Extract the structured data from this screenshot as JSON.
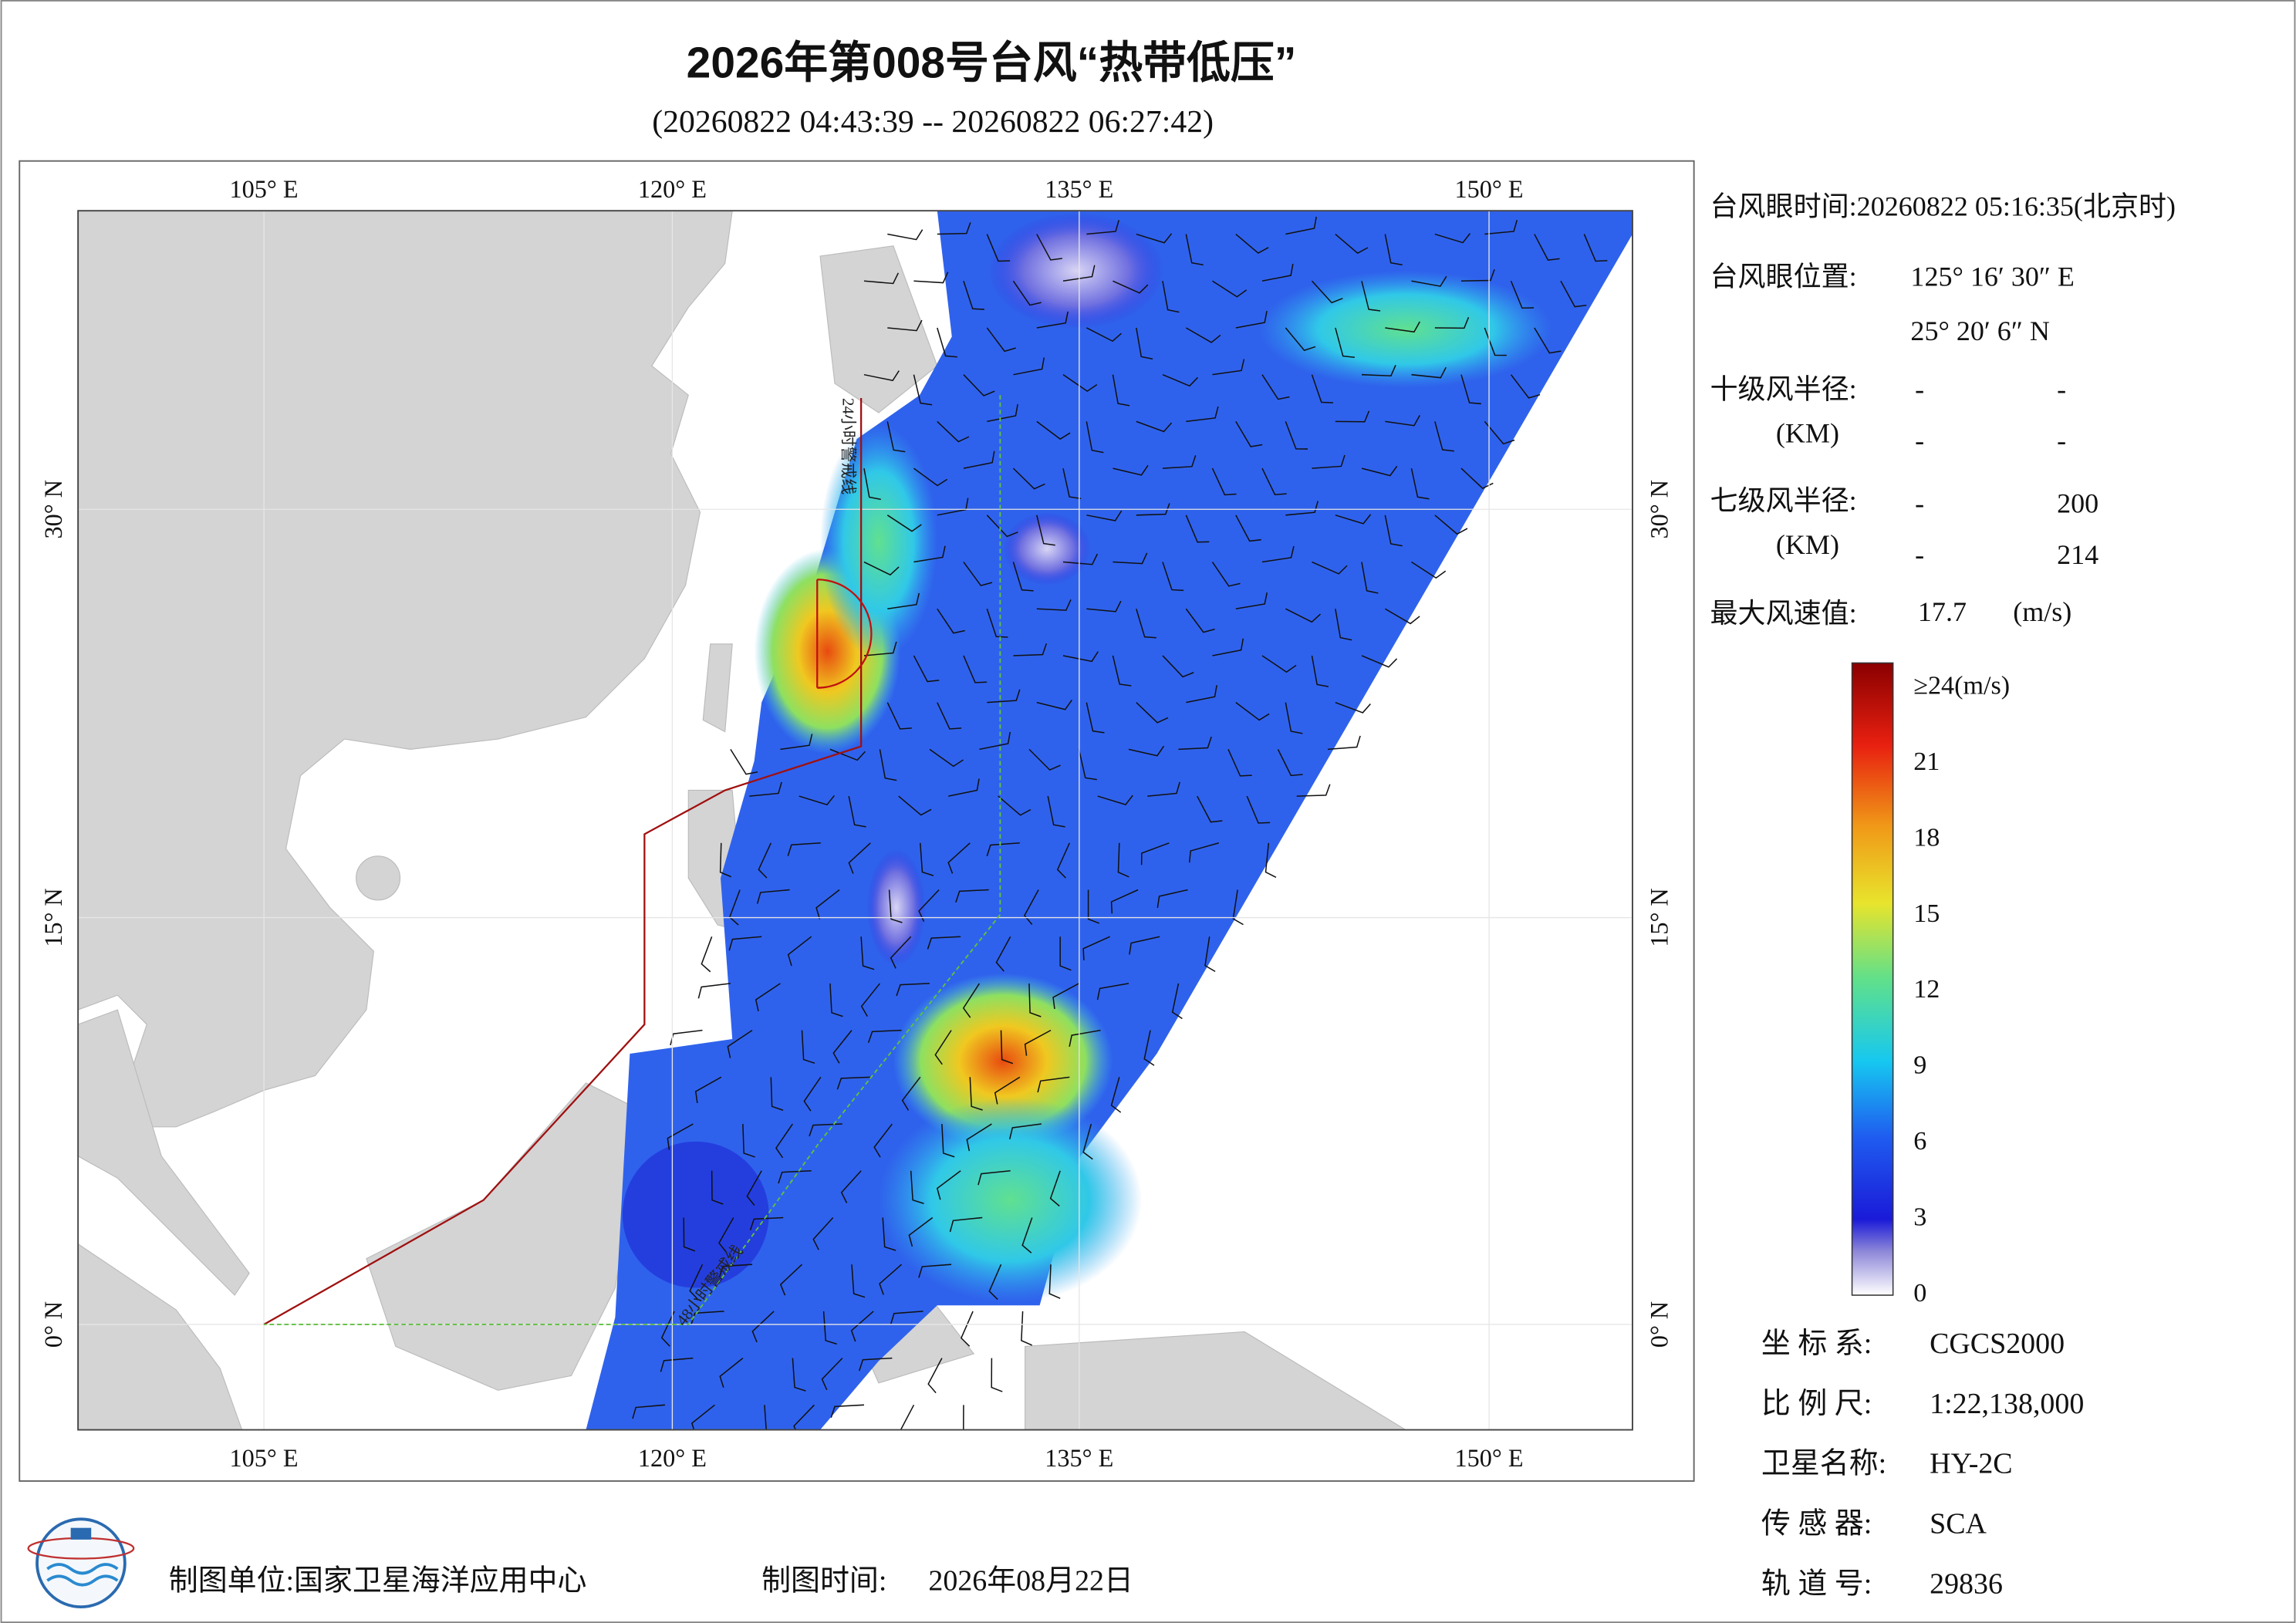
{
  "header": {
    "title": "2026年第008号台风“热带低压”",
    "subtitle": "(20260822 04:43:39 -- 20260822 06:27:42)"
  },
  "map": {
    "lon_labels": [
      "105° E",
      "120° E",
      "135° E",
      "150° E"
    ],
    "lat_labels": [
      "30° N",
      "15° N",
      "0° N"
    ],
    "warning_lines": [
      "24小时警戒线",
      "48小时警戒线"
    ]
  },
  "info": {
    "eye_time": "台风眼时间:20260822 05:16:35(北京时)",
    "eye_position_label": "台风眼位置:",
    "eye_lon": "125° 16′ 30″ E",
    "eye_lat": "25° 20′ 6″ N",
    "r10_label": "十级风半径:",
    "r7_label": "七级风半径:",
    "unit": "(KM)",
    "r10_rows": [
      [
        "-",
        "-"
      ],
      [
        "-",
        "-"
      ]
    ],
    "r7_rows": [
      [
        "-",
        "200"
      ],
      [
        "-",
        "214"
      ]
    ],
    "max_wind_label": "最大风速值:",
    "max_wind_value": "17.7",
    "max_wind_unit": "(m/s)"
  },
  "colorbar": {
    "labels": [
      "≥24(m/s)",
      "21",
      "18",
      "15",
      "12",
      "9",
      "6",
      "3",
      "0"
    ]
  },
  "meta": [
    {
      "label": "坐 标 系:",
      "value": "CGCS2000"
    },
    {
      "label": "比 例 尺:",
      "value": "1:22,138,000"
    },
    {
      "label": "卫星名称:",
      "value": "HY-2C"
    },
    {
      "label": "传 感 器:",
      "value": "SCA"
    },
    {
      "label": "轨 道 号:",
      "value": "29836"
    }
  ],
  "footer": {
    "producer": "制图单位:国家卫星海洋应用中心",
    "time_label": "制图时间:",
    "date": "2026年08月22日"
  }
}
